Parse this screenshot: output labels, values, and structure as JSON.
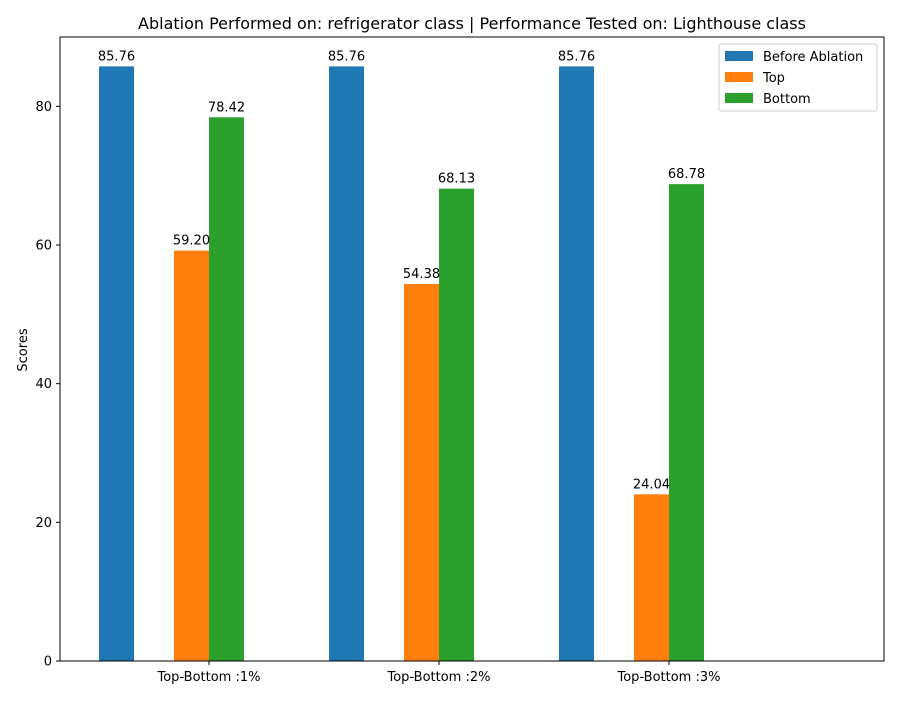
{
  "chart_data": {
    "type": "bar",
    "title": "Ablation Performed on: refrigerator class | Performance Tested on: Lighthouse class",
    "xlabel": "",
    "ylabel": "Scores",
    "categories": [
      "Top-Bottom :1%",
      "Top-Bottom :2%",
      "Top-Bottom :3%"
    ],
    "series": [
      {
        "name": "Before Ablation",
        "color": "#1f77b4",
        "values": [
          85.76,
          85.76,
          85.76
        ],
        "labels": [
          "85.76",
          "85.76",
          "85.76"
        ]
      },
      {
        "name": "Top",
        "color": "#ff7f0e",
        "values": [
          59.2,
          54.38,
          24.04
        ],
        "labels": [
          "59.20",
          "54.38",
          "24.04"
        ]
      },
      {
        "name": "Bottom",
        "color": "#2ca02c",
        "values": [
          78.42,
          68.13,
          68.78
        ],
        "labels": [
          "78.42",
          "68.13",
          "68.78"
        ]
      }
    ],
    "ylim": [
      0,
      90
    ],
    "yticks": [
      0,
      20,
      40,
      60,
      80
    ],
    "grid": false,
    "legend_position": "top-right"
  }
}
